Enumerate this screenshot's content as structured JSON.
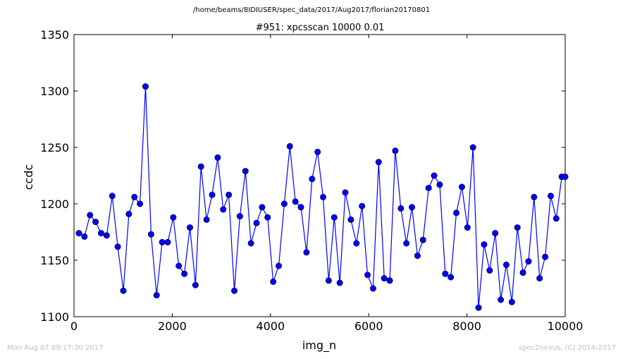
{
  "header": {
    "file_path": "/home/beams/8IDIUSER/spec_data/2017/Aug2017/florian20170801"
  },
  "footer": {
    "timestamp": "Mon Aug 07 09:17:30 2017",
    "credit": "spec2nexus, (C) 2014-2017"
  },
  "chart_data": {
    "type": "line",
    "title": "#951: xpcsscan 10000 0.01",
    "xlabel": "img_n",
    "ylabel": "ccdc",
    "xlim": [
      0,
      10000
    ],
    "ylim": [
      1100,
      1350
    ],
    "xticks": [
      "0",
      "2000",
      "4000",
      "6000",
      "8000",
      "10000"
    ],
    "yticks": [
      "1100",
      "1150",
      "1200",
      "1250",
      "1300",
      "1350"
    ],
    "grid": false,
    "marker": "circle",
    "line_color": "#0000ff",
    "x": [
      100,
      213,
      326,
      439,
      552,
      665,
      778,
      891,
      1004,
      1117,
      1230,
      1343,
      1456,
      1569,
      1682,
      1795,
      1908,
      2021,
      2134,
      2247,
      2360,
      2473,
      2586,
      2699,
      2812,
      2925,
      3038,
      3151,
      3264,
      3377,
      3490,
      3603,
      3716,
      3829,
      3942,
      4055,
      4168,
      4281,
      4394,
      4507,
      4620,
      4733,
      4846,
      4959,
      5072,
      5185,
      5298,
      5411,
      5524,
      5637,
      5750,
      5863,
      5976,
      6089,
      6202,
      6315,
      6428,
      6541,
      6654,
      6767,
      6880,
      6993,
      7106,
      7219,
      7332,
      7445,
      7558,
      7671,
      7784,
      7897,
      8010,
      8123,
      8236,
      8349,
      8462,
      8575,
      8688,
      8801,
      8914,
      9027,
      9140,
      9253,
      9366,
      9479,
      9592,
      9705,
      9818,
      9931,
      10000
    ],
    "y": [
      1174,
      1171,
      1190,
      1184,
      1174,
      1172,
      1207,
      1162,
      1123,
      1191,
      1206,
      1200,
      1304,
      1173,
      1119,
      1166,
      1166,
      1188,
      1145,
      1138,
      1179,
      1128,
      1233,
      1186,
      1208,
      1241,
      1195,
      1208,
      1123,
      1189,
      1229,
      1165,
      1183,
      1197,
      1188,
      1131,
      1145,
      1200,
      1251,
      1202,
      1197,
      1157,
      1222,
      1246,
      1206,
      1132,
      1188,
      1130,
      1210,
      1186,
      1165,
      1198,
      1137,
      1125,
      1237,
      1134,
      1132,
      1247,
      1196,
      1165,
      1197,
      1154,
      1168,
      1214,
      1225,
      1217,
      1138,
      1135,
      1192,
      1215,
      1179,
      1250,
      1108,
      1164,
      1141,
      1174,
      1115,
      1146,
      1113,
      1179,
      1139,
      1149,
      1206,
      1134,
      1153,
      1207,
      1187,
      1224,
      1224
    ]
  }
}
